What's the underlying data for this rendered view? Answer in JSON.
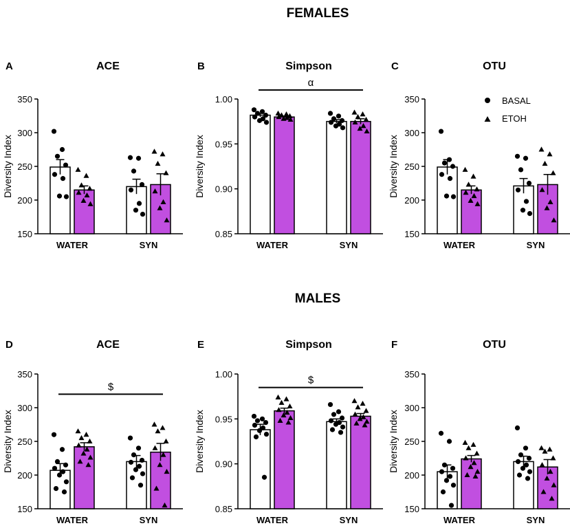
{
  "figure": {
    "females_heading": "FEMALES",
    "males_heading": "MALES",
    "legend": [
      {
        "label": "BASAL",
        "marker": "circle"
      },
      {
        "label": "ETOH",
        "marker": "triangle"
      }
    ],
    "colors": {
      "basal_fill": "#ffffff",
      "etoh_fill": "#c14fe0",
      "ink": "#000000"
    }
  },
  "chart_data": [
    {
      "panel": "A",
      "title": "ACE",
      "type": "bar",
      "ylabel": "Diversity Index",
      "ylim": [
        150,
        350
      ],
      "yticks": [
        150,
        200,
        250,
        300,
        350
      ],
      "categories": [
        "WATER",
        "SYN"
      ],
      "series": [
        {
          "name": "BASAL",
          "values": [
            249,
            220
          ],
          "sem": [
            11,
            11
          ],
          "points": [
            [
              302,
              275,
              265,
              252,
              238,
              232,
              206,
              205
            ],
            [
              263,
              262,
              243,
              223,
              215,
              195,
              185,
              179
            ]
          ]
        },
        {
          "name": "ETOH",
          "values": [
            215,
            223
          ],
          "sem": [
            6,
            16
          ],
          "points": [
            [
              245,
              236,
              222,
              217,
              211,
              207,
              199,
              194
            ],
            [
              272,
              268,
              254,
              240,
              213,
              197,
              188,
              170
            ]
          ]
        }
      ],
      "annotation": null
    },
    {
      "panel": "B",
      "title": "Simpson",
      "type": "bar",
      "ylabel": "Diversity Index",
      "ylim": [
        0.85,
        1.0
      ],
      "yticks": [
        "0.85",
        "0.90",
        "0.95",
        "1.00"
      ],
      "categories": [
        "WATER",
        "SYN"
      ],
      "series": [
        {
          "name": "BASAL",
          "values": [
            0.982,
            0.975
          ],
          "sem": [
            0.002,
            0.002
          ],
          "points": [
            [
              0.988,
              0.986,
              0.984,
              0.982,
              0.98,
              0.978,
              0.976,
              0.974
            ],
            [
              0.984,
              0.981,
              0.978,
              0.976,
              0.974,
              0.972,
              0.97,
              0.968
            ]
          ]
        },
        {
          "name": "ETOH",
          "values": [
            0.98,
            0.975
          ],
          "sem": [
            0.001,
            0.003
          ],
          "points": [
            [
              0.984,
              0.983,
              0.982,
              0.981,
              0.98,
              0.979,
              0.978,
              0.977
            ],
            [
              0.985,
              0.983,
              0.98,
              0.977,
              0.974,
              0.97,
              0.967,
              0.964
            ]
          ]
        }
      ],
      "annotation": {
        "symbol": "α",
        "bar_from": "WATER",
        "bar_to": "SYN",
        "value": 1.01
      }
    },
    {
      "panel": "C",
      "title": "OTU",
      "type": "bar",
      "ylabel": "Diversity Index",
      "ylim": [
        150,
        350
      ],
      "yticks": [
        150,
        200,
        250,
        300,
        350
      ],
      "categories": [
        "WATER",
        "SYN"
      ],
      "series": [
        {
          "name": "BASAL",
          "values": [
            249,
            221
          ],
          "sem": [
            11,
            11
          ],
          "points": [
            [
              302,
              260,
              255,
              250,
              238,
              232,
              206,
              205
            ],
            [
              265,
              262,
              245,
              225,
              215,
              198,
              185,
              180
            ]
          ]
        },
        {
          "name": "ETOH",
          "values": [
            215,
            223
          ],
          "sem": [
            6,
            15
          ],
          "points": [
            [
              245,
              235,
              223,
              216,
              211,
              206,
              199,
              194
            ],
            [
              275,
              268,
              254,
              240,
              215,
              197,
              188,
              170
            ]
          ]
        }
      ],
      "annotation": null
    },
    {
      "panel": "D",
      "title": "ACE",
      "type": "bar",
      "ylabel": "Diversity Index",
      "ylim": [
        150,
        350
      ],
      "yticks": [
        150,
        200,
        250,
        300,
        350
      ],
      "categories": [
        "WATER",
        "SYN"
      ],
      "series": [
        {
          "name": "BASAL",
          "values": [
            207,
            220
          ],
          "sem": [
            10,
            9
          ],
          "points": [
            [
              260,
              238,
              220,
              215,
              210,
              205,
              200,
              190,
              180,
              175
            ],
            [
              255,
              240,
              230,
              222,
              219,
              213,
              208,
              202,
              196,
              185
            ]
          ]
        },
        {
          "name": "ETOH",
          "values": [
            242,
            234
          ],
          "sem": [
            6,
            13
          ],
          "points": [
            [
              265,
              260,
              255,
              250,
              244,
              238,
              232,
              226,
              220,
              215
            ],
            [
              275,
              270,
              265,
              250,
              240,
              230,
              215,
              205,
              180,
              155
            ]
          ]
        }
      ],
      "annotation": {
        "symbol": "$",
        "bar_from": "WATER",
        "bar_to": "SYN",
        "value": 320
      }
    },
    {
      "panel": "E",
      "title": "Simpson",
      "type": "bar",
      "ylabel": "Diversity Index",
      "ylim": [
        0.85,
        1.0
      ],
      "yticks": [
        "0.85",
        "0.90",
        "0.95",
        "1.00"
      ],
      "categories": [
        "WATER",
        "SYN"
      ],
      "series": [
        {
          "name": "BASAL",
          "values": [
            0.938,
            0.947
          ],
          "sem": [
            0.006,
            0.003
          ],
          "points": [
            [
              0.953,
              0.95,
              0.948,
              0.946,
              0.943,
              0.94,
              0.937,
              0.933,
              0.93,
              0.885
            ],
            [
              0.966,
              0.958,
              0.955,
              0.951,
              0.948,
              0.946,
              0.944,
              0.941,
              0.938,
              0.935
            ]
          ]
        },
        {
          "name": "ETOH",
          "values": [
            0.959,
            0.953
          ],
          "sem": [
            0.003,
            0.003
          ],
          "points": [
            [
              0.974,
              0.972,
              0.968,
              0.964,
              0.96,
              0.957,
              0.954,
              0.951,
              0.948,
              0.946
            ],
            [
              0.97,
              0.967,
              0.963,
              0.959,
              0.955,
              0.952,
              0.95,
              0.947,
              0.945,
              0.943
            ]
          ]
        }
      ],
      "annotation": {
        "symbol": "$",
        "bar_from": "WATER",
        "bar_to": "SYN",
        "value": 0.985
      }
    },
    {
      "panel": "F",
      "title": "OTU",
      "type": "bar",
      "ylabel": "Diversity Index",
      "ylim": [
        150,
        350
      ],
      "yticks": [
        150,
        200,
        250,
        300,
        350
      ],
      "categories": [
        "WATER",
        "SYN"
      ],
      "series": [
        {
          "name": "BASAL",
          "values": [
            205,
            220
          ],
          "sem": [
            10,
            8
          ],
          "points": [
            [
              262,
              250,
              215,
              210,
              205,
              198,
              192,
              185,
              175,
              155
            ],
            [
              270,
              240,
              230,
              225,
              220,
              215,
              210,
              205,
              200,
              195
            ]
          ]
        },
        {
          "name": "ETOH",
          "values": [
            224,
            212
          ],
          "sem": [
            5,
            11
          ],
          "points": [
            [
              248,
              245,
              240,
              232,
              225,
              218,
              212,
              205,
              200,
              198
            ],
            [
              240,
              238,
              235,
              225,
              215,
              205,
              195,
              185,
              175,
              165
            ]
          ]
        }
      ],
      "annotation": null
    }
  ]
}
